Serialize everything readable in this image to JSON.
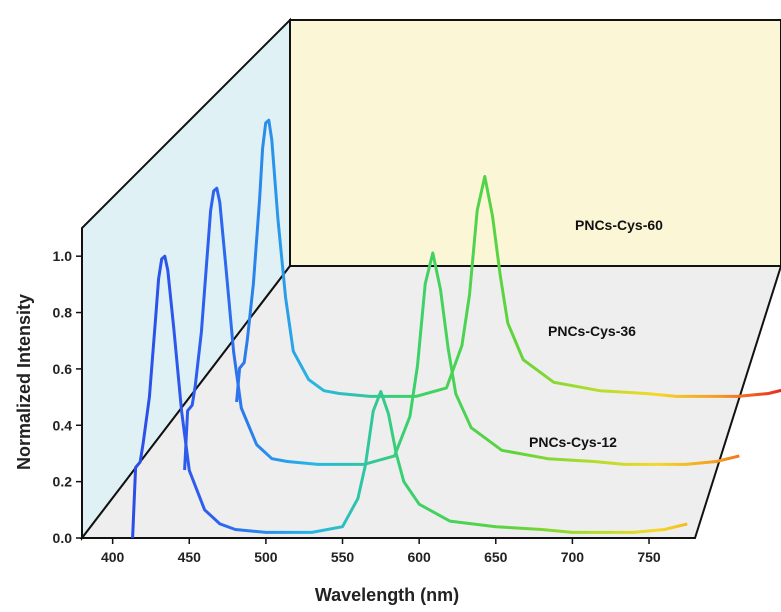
{
  "chart_data": {
    "type": "line",
    "title": "",
    "xlabel": "Wavelength (nm)",
    "ylabel": "Normalized Intensity",
    "xlim": [
      380,
      780
    ],
    "ylim": [
      0.0,
      1.1
    ],
    "x_ticks": [
      "400",
      "450",
      "500",
      "550",
      "600",
      "650",
      "700",
      "750"
    ],
    "y_ticks": [
      "0.0",
      "0.2",
      "0.4",
      "0.6",
      "0.8",
      "1.0"
    ],
    "grid": false,
    "legend": "labels on curves",
    "layout": "3D waterfall (stacked offset planes)",
    "colors": {
      "back_wall": "#fbf7d6",
      "side_wall": "#dff1f4",
      "floor": "#eeeeee",
      "axis": "#111111"
    },
    "series": [
      {
        "name": "PNCs-Cys-12",
        "peak1_nm": 433,
        "peak2_nm": 575,
        "x": [
          413,
          415,
          418,
          420,
          424,
          428,
          430,
          432,
          434,
          436,
          440,
          445,
          450,
          460,
          470,
          480,
          500,
          530,
          550,
          560,
          565,
          570,
          575,
          580,
          585,
          590,
          600,
          620,
          650,
          680,
          700,
          720,
          740,
          760,
          775
        ],
        "y": [
          0.0,
          0.25,
          0.27,
          0.34,
          0.5,
          0.78,
          0.92,
          0.99,
          1.0,
          0.95,
          0.74,
          0.45,
          0.24,
          0.1,
          0.05,
          0.03,
          0.02,
          0.02,
          0.04,
          0.14,
          0.26,
          0.45,
          0.52,
          0.44,
          0.3,
          0.2,
          0.12,
          0.06,
          0.04,
          0.03,
          0.02,
          0.02,
          0.02,
          0.03,
          0.05
        ]
      },
      {
        "name": "PNCs-Cys-36",
        "peak1_nm": 433,
        "peak2_nm": 575,
        "x": [
          413,
          415,
          418,
          420,
          424,
          428,
          430,
          432,
          434,
          436,
          440,
          445,
          450,
          460,
          470,
          480,
          500,
          530,
          550,
          560,
          565,
          570,
          575,
          580,
          585,
          590,
          600,
          620,
          650,
          680,
          700,
          720,
          740,
          760,
          775
        ],
        "y": [
          0.0,
          0.21,
          0.23,
          0.3,
          0.49,
          0.78,
          0.92,
          0.99,
          1.0,
          0.95,
          0.72,
          0.42,
          0.22,
          0.09,
          0.04,
          0.03,
          0.02,
          0.02,
          0.05,
          0.19,
          0.37,
          0.66,
          0.77,
          0.64,
          0.43,
          0.27,
          0.15,
          0.07,
          0.04,
          0.03,
          0.02,
          0.02,
          0.02,
          0.03,
          0.05
        ]
      },
      {
        "name": "PNCs-Cys-60",
        "peak1_nm": 433,
        "peak2_nm": 575,
        "x": [
          413,
          415,
          418,
          420,
          424,
          428,
          430,
          432,
          434,
          436,
          440,
          445,
          450,
          460,
          470,
          480,
          500,
          530,
          550,
          560,
          565,
          570,
          575,
          580,
          585,
          590,
          600,
          620,
          650,
          680,
          700,
          720,
          740,
          760,
          775
        ],
        "y": [
          0.0,
          0.12,
          0.14,
          0.22,
          0.42,
          0.72,
          0.9,
          0.99,
          1.0,
          0.93,
          0.65,
          0.37,
          0.18,
          0.08,
          0.04,
          0.03,
          0.02,
          0.02,
          0.05,
          0.2,
          0.38,
          0.68,
          0.8,
          0.66,
          0.45,
          0.28,
          0.15,
          0.07,
          0.04,
          0.03,
          0.02,
          0.02,
          0.02,
          0.03,
          0.05
        ]
      }
    ]
  }
}
